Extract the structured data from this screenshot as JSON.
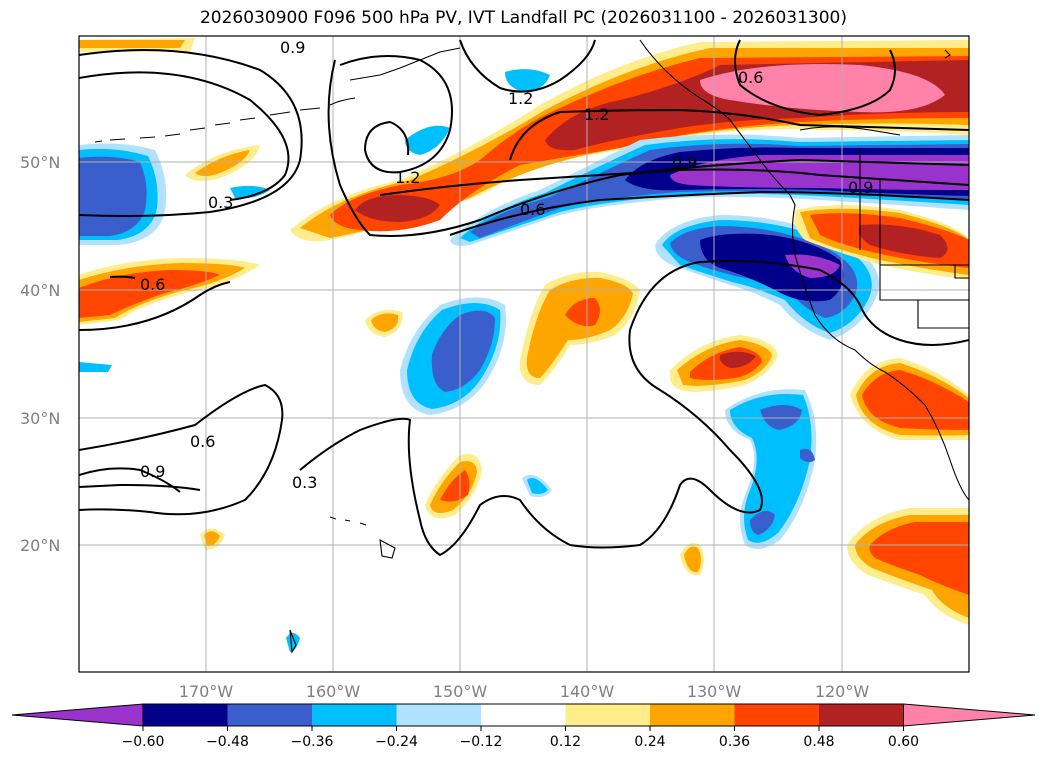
{
  "title": "2026030900 F096 500 hPa PV, IVT Landfall PC (2026031100 - 2026031300)",
  "latitude_labels": [
    "50°N",
    "40°N",
    "30°N",
    "20°N"
  ],
  "longitude_labels": [
    "170°W",
    "160°W",
    "150°W",
    "140°W",
    "130°W",
    "120°W"
  ],
  "contour_labels": [
    "0.9",
    "1.2",
    "1.2",
    "1.2",
    "0.3",
    "0.6",
    "0.6",
    "0.9",
    "0.6",
    "0.9",
    "0.3",
    "0.6"
  ],
  "colorbar": {
    "tick_labels": [
      "−0.60",
      "−0.48",
      "−0.36",
      "−0.24",
      "−0.12",
      "0.12",
      "0.24",
      "0.36",
      "0.48",
      "0.60"
    ],
    "colors": [
      "#9933CC",
      "#00008B",
      "#3A5FCD",
      "#00BFFF",
      "#B0E2FF",
      "#FFFFFF",
      "#FFEC8B",
      "#FFA500",
      "#FF4500",
      "#B22222",
      "#FF82AB"
    ]
  }
}
